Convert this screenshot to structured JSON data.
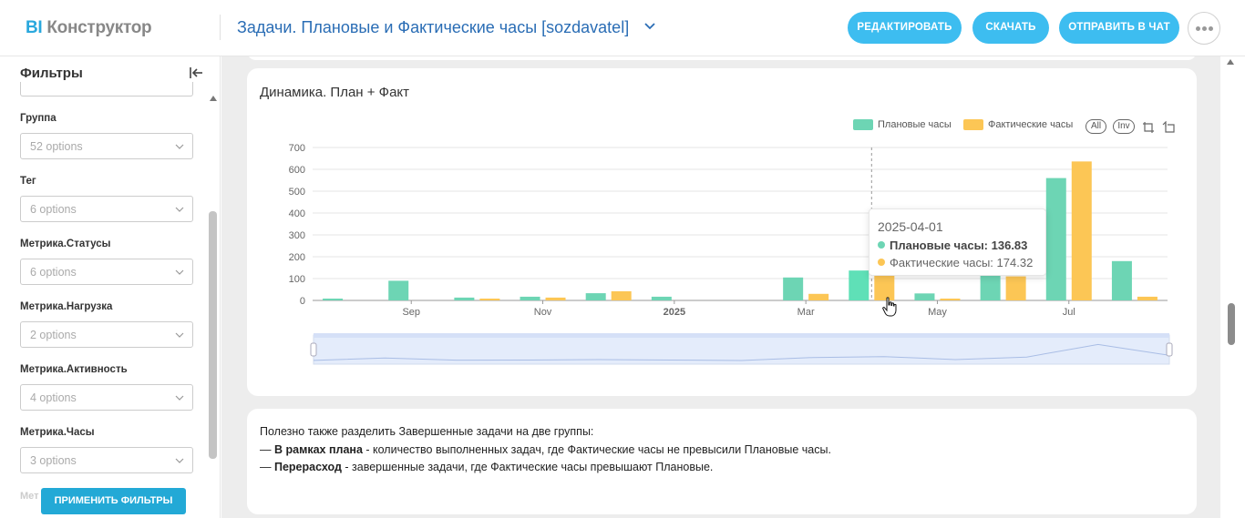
{
  "header": {
    "logo_bi": "BI",
    "logo_name": "Конструктор",
    "title": "Задачи. Плановые и Фактические часы [sozdavatel]",
    "buttons": {
      "edit": "РЕДАКТИРОВАТЬ",
      "download": "СКАЧАТЬ",
      "send": "ОТПРАВИТЬ В ЧАТ"
    }
  },
  "sidebar": {
    "title": "Фильтры",
    "filters": [
      {
        "label": "Группа",
        "placeholder": "52 options"
      },
      {
        "label": "Тег",
        "placeholder": "6 options"
      },
      {
        "label": "Метрика.Статусы",
        "placeholder": "6 options"
      },
      {
        "label": "Метрика.Нагрузка",
        "placeholder": "2 options"
      },
      {
        "label": "Метрика.Активность",
        "placeholder": "4 options"
      },
      {
        "label": "Метрика.Часы",
        "placeholder": "3 options"
      }
    ],
    "truncated_label": "Мет",
    "apply_button": "ПРИМЕНИТЬ ФИЛЬТРЫ"
  },
  "chart_card": {
    "title": "Динамика. План + Факт",
    "tools": {
      "all": "All",
      "inv": "Inv"
    },
    "tooltip": {
      "date": "2025-04-01",
      "planned_label": "Плановые часы:",
      "planned_value": "136.83",
      "actual_label": "Фактические часы:",
      "actual_value": "174.32"
    }
  },
  "chart_data": {
    "type": "bar",
    "categories": [
      "2024-08",
      "2024-09",
      "2024-10",
      "2024-11",
      "2024-12",
      "2025-01",
      "2025-02",
      "2025-03",
      "2025-04",
      "2025-05",
      "2025-06",
      "2025-07",
      "2025-08"
    ],
    "x_tick_labels": [
      "Sep",
      "Nov",
      "2025",
      "Mar",
      "May",
      "Jul"
    ],
    "x_tick_positions": [
      "2024-09",
      "2024-11",
      "2025-01",
      "2025-03",
      "2025-05",
      "2025-07"
    ],
    "y_ticks": [
      "0",
      "100",
      "200",
      "300",
      "400",
      "500",
      "600",
      "700"
    ],
    "ylim": [
      0,
      700
    ],
    "grid": true,
    "legend_position": "top-right",
    "series": [
      {
        "name": "Плановые часы",
        "color": "#6dd5b4",
        "values": [
          3,
          90,
          13,
          17,
          33,
          17,
          0,
          105,
          136.83,
          32,
          120,
          560,
          180
        ]
      },
      {
        "name": "Фактические часы",
        "color": "#fcc655",
        "values": [
          0,
          0,
          3,
          13,
          42,
          0,
          0,
          30,
          174.32,
          8,
          110,
          636,
          17
        ]
      }
    ]
  },
  "text_card": {
    "line1": "Полезно также разделить Завершенные задачи на две группы:",
    "line2_dash": "— ",
    "line2_bold": "В рамках плана",
    "line2_rest": " - количество выполненных задач, где Фактические часы не превысили Плановые часы.",
    "line3_dash": "— ",
    "line3_bold": "Перерасход",
    "line3_rest": " - завершенные задачи, где Фактические часы превышают Плановые."
  }
}
